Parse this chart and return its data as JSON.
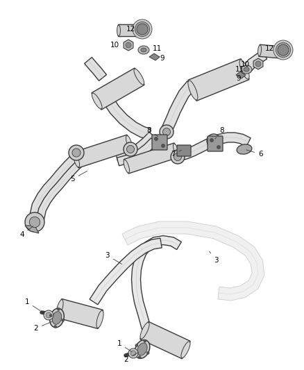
{
  "bg_color": "#ffffff",
  "line_color": "#3a3a3a",
  "label_color": "#000000",
  "label_fontsize": 7.5,
  "figsize": [
    4.38,
    5.33
  ],
  "dpi": 100
}
